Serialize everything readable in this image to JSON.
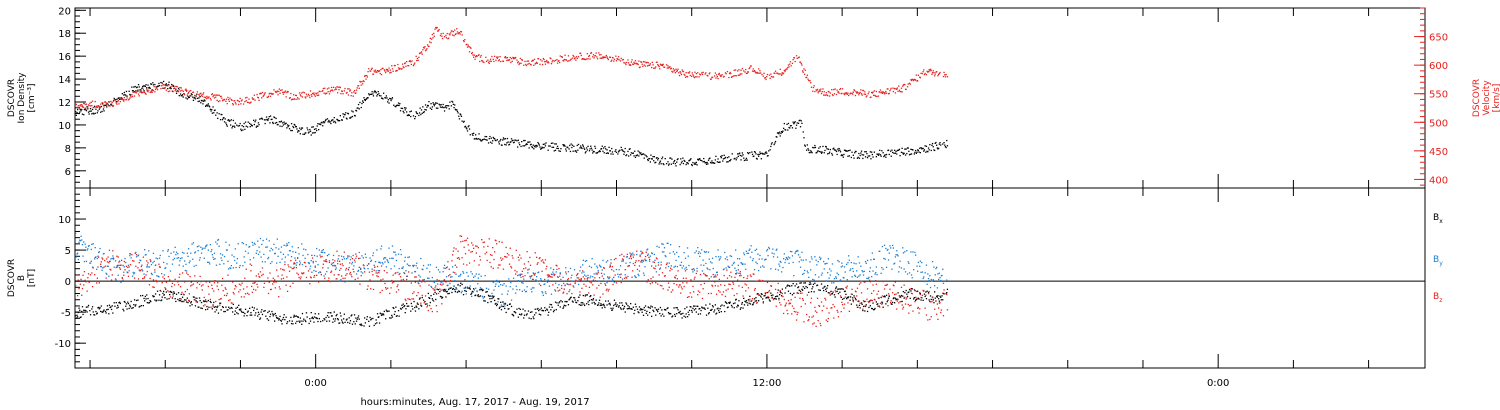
{
  "xlabel": "hours:minutes, Aug. 17, 2017 - Aug. 19, 2017",
  "x_ticks": [
    {
      "hour": 0,
      "label": "0:00"
    },
    {
      "hour": 12,
      "label": "12:00"
    },
    {
      "hour": 24,
      "label": "0:00"
    }
  ],
  "colors": {
    "black": "#000000",
    "red": "#e8201d",
    "blue": "#1c7fd3",
    "axes": "#000000"
  },
  "chart_data": [
    {
      "type": "scatter",
      "panel": "top",
      "x_range_hours": [
        -6.4,
        29.5
      ],
      "left_axis": {
        "label_lines": [
          "DSCOVR",
          "Ion Density",
          "[cm⁻³]"
        ],
        "ylim": [
          4.5,
          20.2
        ],
        "ticks": [
          6,
          8,
          10,
          12,
          14,
          16,
          18,
          20
        ],
        "minor_step": 0.5
      },
      "right_axis": {
        "label_lines": [
          "DSCOVR",
          "Velocity",
          "[km/s]"
        ],
        "ylim": [
          385,
          700
        ],
        "ticks": [
          400,
          450,
          500,
          550,
          600,
          650
        ],
        "minor_step": 10
      },
      "series": [
        {
          "axis": "left",
          "color": "black",
          "jitter": 0.35,
          "x": [
            -6.4,
            -5.8,
            -5.5,
            -5.2,
            -4.8,
            -4.5,
            -4.0,
            -3.6,
            -3.2,
            -2.8,
            -2.4,
            -2.0,
            -1.6,
            -1.2,
            -0.8,
            -0.2,
            0.4,
            1.0,
            1.4,
            1.8,
            2.2,
            2.6,
            3.0,
            3.4,
            3.6,
            4.2,
            5.0,
            6.0,
            7.0,
            8.0,
            8.6,
            9.0,
            9.6,
            10.2,
            10.8,
            11.4,
            12.0,
            12.4,
            12.6,
            12.9,
            13.0,
            13.4,
            14.0,
            14.6,
            15.2,
            15.8,
            16.2,
            16.8
          ],
          "y": [
            11.2,
            11.4,
            11.8,
            12.5,
            13.2,
            13.3,
            13.6,
            12.8,
            12.5,
            11.5,
            10.3,
            9.9,
            10.2,
            10.6,
            10.0,
            9.4,
            10.5,
            11.0,
            12.8,
            12.6,
            11.7,
            10.8,
            11.8,
            11.5,
            11.9,
            9.0,
            8.6,
            8.2,
            8.0,
            7.8,
            7.5,
            7.0,
            6.8,
            6.9,
            7.1,
            7.3,
            7.5,
            9.8,
            10.0,
            10.2,
            8.0,
            7.9,
            7.6,
            7.4,
            7.6,
            7.8,
            8.0,
            8.4
          ]
        },
        {
          "axis": "right",
          "color": "red",
          "jitter": 6,
          "x": [
            -6.4,
            -5.8,
            -5.4,
            -5.0,
            -4.6,
            -4.2,
            -3.8,
            -3.4,
            -3.0,
            -2.6,
            -2.2,
            -1.8,
            -1.4,
            -1.0,
            -0.6,
            -0.2,
            0.2,
            0.6,
            1.0,
            1.4,
            1.8,
            2.2,
            2.6,
            3.0,
            3.2,
            3.4,
            3.8,
            4.2,
            4.6,
            5.0,
            5.6,
            6.2,
            6.8,
            7.4,
            8.0,
            8.6,
            9.2,
            9.8,
            10.4,
            11.0,
            11.6,
            12.0,
            12.4,
            12.8,
            13.2,
            13.6,
            14.0,
            14.8,
            15.6,
            16.2,
            16.8
          ],
          "y": [
            530,
            533,
            535,
            545,
            555,
            562,
            560,
            552,
            548,
            543,
            537,
            540,
            548,
            555,
            545,
            550,
            555,
            558,
            552,
            590,
            590,
            598,
            606,
            640,
            665,
            650,
            662,
            615,
            610,
            612,
            605,
            608,
            615,
            618,
            612,
            602,
            600,
            585,
            582,
            585,
            595,
            580,
            590,
            615,
            560,
            552,
            555,
            550,
            560,
            590,
            585
          ]
        }
      ]
    },
    {
      "type": "scatter",
      "panel": "bottom",
      "x_range_hours": [
        -6.4,
        29.5
      ],
      "left_axis": {
        "label_lines": [
          "DSCOVR",
          "B",
          "[nT]"
        ],
        "ylim": [
          -14,
          15
        ],
        "ticks": [
          -10,
          -5,
          0,
          5,
          10
        ],
        "minor_step": 1
      },
      "zero_line": true,
      "legend": [
        {
          "label": "B",
          "sub": "x",
          "color": "black"
        },
        {
          "label": "B",
          "sub": "y",
          "color": "blue"
        },
        {
          "label": "B",
          "sub": "z",
          "color": "red"
        }
      ],
      "series": [
        {
          "name": "Bx",
          "color": "black",
          "jitter": 0.9,
          "x": [
            -6.4,
            -5.8,
            -5.2,
            -4.6,
            -4.0,
            -3.4,
            -2.8,
            -2.2,
            -1.6,
            -1.0,
            -0.4,
            0.2,
            0.8,
            1.4,
            2.0,
            2.6,
            3.2,
            3.8,
            4.4,
            5.0,
            5.6,
            6.2,
            6.8,
            7.4,
            8.0,
            8.6,
            9.2,
            9.8,
            10.4,
            11.0,
            11.6,
            12.2,
            12.8,
            13.4,
            14.0,
            14.6,
            15.2,
            15.8,
            16.4,
            16.8
          ],
          "y": [
            -5,
            -4.5,
            -4,
            -3,
            -2,
            -3,
            -4,
            -4.5,
            -5,
            -6,
            -6,
            -5.5,
            -6,
            -6.5,
            -5,
            -4,
            -2,
            -1,
            -2,
            -4,
            -5.5,
            -4.5,
            -3,
            -3,
            -4,
            -4.5,
            -5,
            -5,
            -4.5,
            -4,
            -3,
            -2,
            -1,
            -1,
            -2,
            -4,
            -3,
            -2,
            -2.5,
            -2
          ]
        },
        {
          "name": "By",
          "color": "blue",
          "jitter": 2.2,
          "x": [
            -6.4,
            -5.8,
            -5.2,
            -4.6,
            -4.0,
            -3.4,
            -2.8,
            -2.2,
            -1.6,
            -1.0,
            -0.4,
            0.2,
            0.8,
            1.4,
            2.0,
            2.6,
            3.2,
            3.8,
            4.4,
            5.0,
            5.6,
            6.2,
            6.8,
            7.4,
            8.0,
            8.6,
            9.2,
            9.8,
            10.4,
            11.0,
            11.6,
            12.2,
            12.8,
            13.4,
            14.0,
            14.6,
            15.2,
            15.8,
            16.4,
            16.8
          ],
          "y": [
            6,
            4,
            2,
            3,
            3,
            4,
            5,
            4,
            5,
            5,
            4,
            3,
            2,
            3,
            4,
            2,
            1,
            0,
            -1,
            -2,
            0,
            0,
            1,
            2,
            2,
            3,
            4,
            4,
            3,
            3,
            4,
            4,
            3,
            2,
            2,
            2,
            4,
            3,
            1,
            1
          ]
        },
        {
          "name": "Bz",
          "color": "red",
          "jitter": 2.4,
          "x": [
            -6.4,
            -5.8,
            -5.2,
            -4.6,
            -4.0,
            -3.4,
            -2.8,
            -2.2,
            -1.6,
            -1.0,
            -0.4,
            0.2,
            0.8,
            1.4,
            2.0,
            2.6,
            3.2,
            3.8,
            4.4,
            5.0,
            5.6,
            6.2,
            6.8,
            7.4,
            8.0,
            8.6,
            9.2,
            9.8,
            10.4,
            11.0,
            11.6,
            12.2,
            12.8,
            13.4,
            14.0,
            14.6,
            15.2,
            15.8,
            16.4,
            16.8
          ],
          "y": [
            -1,
            2,
            3,
            2,
            0,
            -1,
            -2,
            -1,
            1,
            0,
            2,
            2,
            3,
            1,
            0,
            -1,
            -3,
            5,
            5,
            4,
            3,
            1,
            0,
            -1,
            2,
            3,
            1,
            0,
            -1,
            0,
            -1,
            -2,
            -4,
            -5,
            -3,
            -2,
            -2,
            -3,
            -4,
            -3
          ]
        }
      ]
    }
  ]
}
